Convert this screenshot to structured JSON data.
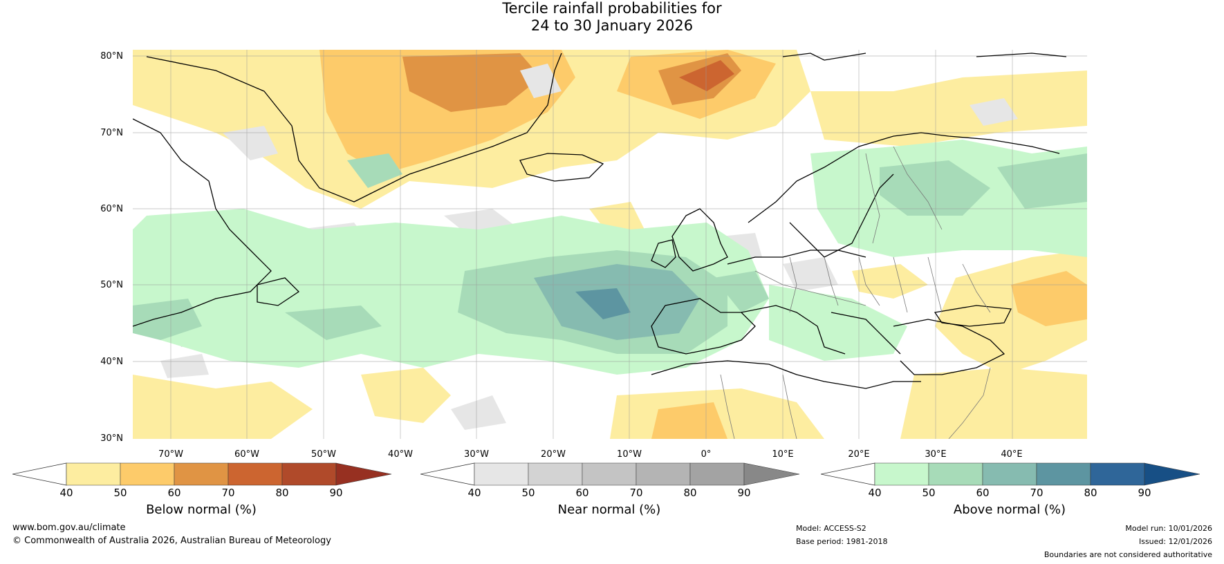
{
  "title": {
    "line1": "Tercile rainfall probabilities for",
    "line2": "24 to 30 January 2026"
  },
  "map": {
    "lat_labels": [
      "80°N",
      "70°N",
      "60°N",
      "50°N",
      "40°N",
      "30°N"
    ],
    "lon_labels": [
      "70°W",
      "60°W",
      "50°W",
      "40°W",
      "30°W",
      "20°W",
      "10°W",
      "0°",
      "10°E",
      "20°E",
      "30°E",
      "40°E"
    ]
  },
  "colorbars": {
    "below": {
      "label": "Below normal (%)",
      "ticks": [
        "40",
        "50",
        "60",
        "70",
        "80",
        "90"
      ],
      "colors": [
        "#fdeda0",
        "#fdcb6a",
        "#e09444",
        "#cc6530",
        "#b04a2a",
        "#973021"
      ]
    },
    "near": {
      "label": "Near normal (%)",
      "ticks": [
        "40",
        "50",
        "60",
        "70",
        "80",
        "90"
      ],
      "colors": [
        "#e6e6e6",
        "#d3d3d3",
        "#c4c4c4",
        "#b4b4b4",
        "#a3a3a3",
        "#888888"
      ]
    },
    "above": {
      "label": "Above normal (%)",
      "ticks": [
        "40",
        "50",
        "60",
        "70",
        "80",
        "90"
      ],
      "colors": [
        "#c7f7cc",
        "#a7dbb8",
        "#86bbb0",
        "#5d95a1",
        "#2f6699",
        "#174f85"
      ]
    }
  },
  "footer": {
    "website": "www.bom.gov.au/climate",
    "copyright": "© Commonwealth of Australia 2026, Australian Bureau of Meteorology",
    "model": "Model: ACCESS-S2",
    "base_period": "Base period: 1981-2018",
    "model_run": "Model run: 10/01/2026",
    "issued": "Issued: 12/01/2026",
    "disclaimer": "Boundaries are not considered authoritative"
  }
}
